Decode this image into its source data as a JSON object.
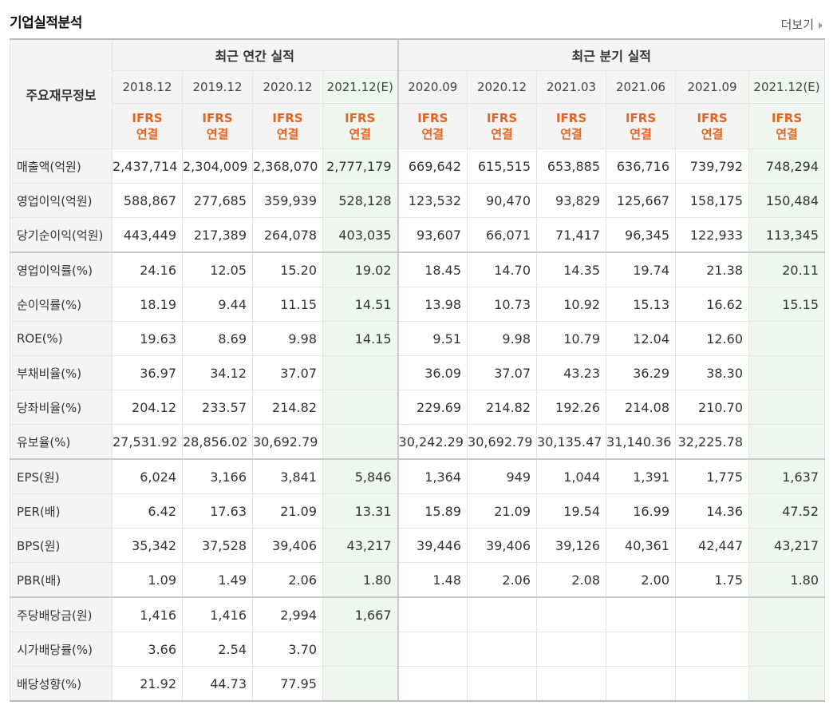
{
  "header": {
    "title": "기업실적분석",
    "more_label": "더보기"
  },
  "table": {
    "row_header_label": "주요재무정보",
    "groups": {
      "annual": "최근 연간 실적",
      "quarterly": "최근 분기 실적"
    },
    "periods": [
      "2018.12",
      "2019.12",
      "2020.12",
      "2021.12(E)",
      "2020.09",
      "2020.12",
      "2021.03",
      "2021.06",
      "2021.09",
      "2021.12(E)"
    ],
    "ifrs_line1": "IFRS",
    "ifrs_line2": "연결",
    "rows": [
      {
        "label": "매출액(억원)",
        "values": [
          "2,437,714",
          "2,304,009",
          "2,368,070",
          "2,777,179",
          "669,642",
          "615,515",
          "653,885",
          "636,716",
          "739,792",
          "748,294"
        ]
      },
      {
        "label": "영업이익(억원)",
        "values": [
          "588,867",
          "277,685",
          "359,939",
          "528,128",
          "123,532",
          "90,470",
          "93,829",
          "125,667",
          "158,175",
          "150,484"
        ]
      },
      {
        "label": "당기순이익(억원)",
        "values": [
          "443,449",
          "217,389",
          "264,078",
          "403,035",
          "93,607",
          "66,071",
          "71,417",
          "96,345",
          "122,933",
          "113,345"
        ]
      },
      {
        "label": "영업이익률(%)",
        "values": [
          "24.16",
          "12.05",
          "15.20",
          "19.02",
          "18.45",
          "14.70",
          "14.35",
          "19.74",
          "21.38",
          "20.11"
        ]
      },
      {
        "label": "순이익률(%)",
        "values": [
          "18.19",
          "9.44",
          "11.15",
          "14.51",
          "13.98",
          "10.73",
          "10.92",
          "15.13",
          "16.62",
          "15.15"
        ]
      },
      {
        "label": "ROE(%)",
        "values": [
          "19.63",
          "8.69",
          "9.98",
          "14.15",
          "9.51",
          "9.98",
          "10.79",
          "12.04",
          "12.60",
          ""
        ]
      },
      {
        "label": "부채비율(%)",
        "values": [
          "36.97",
          "34.12",
          "37.07",
          "",
          "36.09",
          "37.07",
          "43.23",
          "36.29",
          "38.30",
          ""
        ]
      },
      {
        "label": "당좌비율(%)",
        "values": [
          "204.12",
          "233.57",
          "214.82",
          "",
          "229.69",
          "214.82",
          "192.26",
          "214.08",
          "210.70",
          ""
        ]
      },
      {
        "label": "유보율(%)",
        "values": [
          "27,531.92",
          "28,856.02",
          "30,692.79",
          "",
          "30,242.29",
          "30,692.79",
          "30,135.47",
          "31,140.36",
          "32,225.78",
          ""
        ]
      },
      {
        "label": "EPS(원)",
        "values": [
          "6,024",
          "3,166",
          "3,841",
          "5,846",
          "1,364",
          "949",
          "1,044",
          "1,391",
          "1,775",
          "1,637"
        ]
      },
      {
        "label": "PER(배)",
        "values": [
          "6.42",
          "17.63",
          "21.09",
          "13.31",
          "15.89",
          "21.09",
          "19.54",
          "16.99",
          "14.36",
          "47.52"
        ]
      },
      {
        "label": "BPS(원)",
        "values": [
          "35,342",
          "37,528",
          "39,406",
          "43,217",
          "39,446",
          "39,406",
          "39,126",
          "40,361",
          "42,447",
          "43,217"
        ]
      },
      {
        "label": "PBR(배)",
        "values": [
          "1.09",
          "1.49",
          "2.06",
          "1.80",
          "1.48",
          "2.06",
          "2.08",
          "2.00",
          "1.75",
          "1.80"
        ]
      },
      {
        "label": "주당배당금(원)",
        "values": [
          "1,416",
          "1,416",
          "2,994",
          "1,667",
          "",
          "",
          "",
          "",
          "",
          ""
        ]
      },
      {
        "label": "시가배당률(%)",
        "values": [
          "3.66",
          "2.54",
          "3.70",
          "",
          "",
          "",
          "",
          "",
          "",
          ""
        ]
      },
      {
        "label": "배당성향(%)",
        "values": [
          "21.92",
          "44.73",
          "77.95",
          "",
          "",
          "",
          "",
          "",
          "",
          ""
        ]
      }
    ]
  },
  "colors": {
    "ifrs": "#e8631f",
    "estimate_bg": "#eef6ef",
    "estimate_text": "#1a7a3a"
  }
}
